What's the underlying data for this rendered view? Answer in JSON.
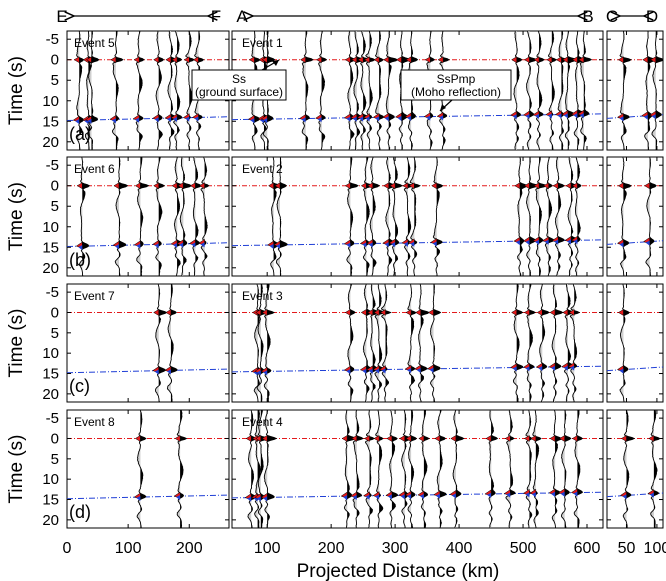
{
  "profiles": [
    {
      "id": "EF",
      "left": "E",
      "right": "F"
    },
    {
      "id": "AB",
      "left": "A",
      "right": "B"
    },
    {
      "id": "CD",
      "left": "C",
      "right": "D"
    }
  ],
  "ylabel": "Time (s)",
  "xlabel": "Projected Distance (km)",
  "y_ticks": [
    "-5",
    "0",
    "5",
    "10",
    "15",
    "20"
  ],
  "rows": [
    {
      "letter": "(a)",
      "events": [
        "Event 5",
        "Event 1"
      ]
    },
    {
      "letter": "(b)",
      "events": [
        "Event 6",
        "Event 2"
      ]
    },
    {
      "letter": "(c)",
      "events": [
        "Event 7",
        "Event 3"
      ]
    },
    {
      "letter": "(d)",
      "events": [
        "Event 8",
        "Event 4"
      ]
    }
  ],
  "annotations": {
    "ss": {
      "line1": "Ss",
      "line2": "(ground surface)"
    },
    "sspmp": {
      "line1": "SsPmp",
      "line2": "(Moho reflection)"
    }
  },
  "colors": {
    "ss_line": "#e31a1c",
    "sspmp_line": "#1f3fd6",
    "trace_fill": "#000000",
    "trace_neg_fill": "#cfcfcf",
    "pick_red": "#e31a1c",
    "pick_blue": "#1f3fd6"
  },
  "chart_data": {
    "type": "record-section",
    "ylim": [
      22,
      -7
    ],
    "y_ticks": [
      -5,
      0,
      5,
      10,
      15,
      20
    ],
    "ss_time": 0,
    "panels": {
      "EF": {
        "xlim": [
          0,
          265
        ],
        "x_ticks": [
          0,
          100,
          200
        ],
        "sspmp_line": [
          [
            0,
            14.8
          ],
          [
            265,
            13.9
          ]
        ]
      },
      "AB": {
        "xlim": [
          45,
          625
        ],
        "x_ticks": [
          100,
          200,
          300,
          400,
          500,
          600
        ],
        "sspmp_line": [
          [
            45,
            14.6
          ],
          [
            625,
            13.2
          ]
        ]
      },
      "CD": {
        "xlim": [
          18,
          110
        ],
        "x_ticks": [
          50,
          100
        ],
        "sspmp_line": [
          [
            18,
            14.3
          ],
          [
            110,
            13.4
          ]
        ]
      }
    },
    "traces": [
      {
        "EF": [
          20,
          35,
          40,
          80,
          118,
          150,
          170,
          180,
          200,
          215
        ],
        "AB": [
          80,
          95,
          100,
          160,
          185,
          230,
          240,
          250,
          260,
          275,
          290,
          310,
          325,
          355,
          375,
          490,
          510,
          525,
          545,
          560,
          570,
          585,
          595
        ],
        "CD": [
          45,
          85,
          98
        ]
      },
      {
        "EF": [
          25,
          85,
          120,
          150,
          180,
          190,
          210,
          225
        ],
        "AB": [
          110,
          120,
          230,
          255,
          265,
          290,
          300,
          320,
          330,
          365,
          495,
          510,
          525,
          540,
          555,
          575,
          585
        ],
        "CD": [
          45,
          88
        ]
      },
      {
        "EF": [
          150,
          170
        ],
        "AB": [
          85,
          90,
          100,
          230,
          255,
          265,
          275,
          285,
          325,
          340,
          360,
          490,
          510,
          530,
          550,
          570,
          580
        ],
        "CD": [
          45
        ]
      },
      {
        "EF": [
          120,
          185
        ],
        "AB": [
          75,
          85,
          90,
          100,
          225,
          240,
          260,
          275,
          295,
          315,
          325,
          345,
          370,
          395,
          450,
          480,
          510,
          520,
          550,
          565,
          585
        ],
        "CD": [
          50,
          95
        ]
      }
    ]
  }
}
